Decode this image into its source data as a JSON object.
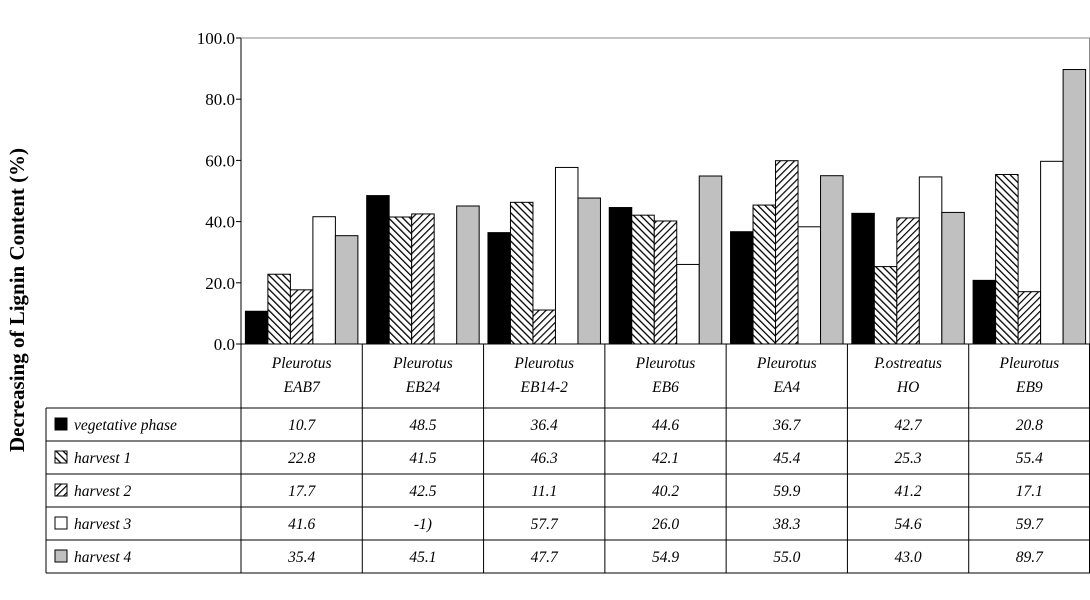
{
  "chart_data": {
    "type": "bar",
    "ylabel": "Decreasing of Lignin Content  (%)",
    "ylim": [
      0,
      100
    ],
    "yticks": [
      "0.0",
      "20.0",
      "40.0",
      "60.0",
      "80.0",
      "100.0"
    ],
    "categories": [
      [
        "Pleurotus",
        "EAB7"
      ],
      [
        "Pleurotus",
        "EB24"
      ],
      [
        "Pleurotus",
        "EB14-2"
      ],
      [
        "Pleurotus",
        "EB6"
      ],
      [
        "Pleurotus",
        "EA4"
      ],
      [
        "P.ostreatus",
        "HO"
      ],
      [
        "Pleurotus",
        "EB9"
      ]
    ],
    "series": [
      {
        "name": "vegetative phase",
        "pattern": "solid-black",
        "values": [
          10.7,
          48.5,
          36.4,
          44.6,
          36.7,
          42.7,
          20.8
        ],
        "labels": [
          "10.7",
          "48.5",
          "36.4",
          "44.6",
          "36.7",
          "42.7",
          "20.8"
        ]
      },
      {
        "name": "harvest 1",
        "pattern": "diag-hatch-dense",
        "values": [
          22.8,
          41.5,
          46.3,
          42.1,
          45.4,
          25.3,
          55.4
        ],
        "labels": [
          "22.8",
          "41.5",
          "46.3",
          "42.1",
          "45.4",
          "25.3",
          "55.4"
        ]
      },
      {
        "name": "harvest 2",
        "pattern": "diag-hatch-reverse",
        "values": [
          17.7,
          42.5,
          11.1,
          40.2,
          59.9,
          41.2,
          17.1
        ],
        "labels": [
          "17.7",
          "42.5",
          "11.1",
          "40.2",
          "59.9",
          "41.2",
          "17.1"
        ]
      },
      {
        "name": "harvest 3",
        "pattern": "white",
        "values": [
          41.6,
          null,
          57.7,
          26.0,
          38.3,
          54.6,
          59.7
        ],
        "labels": [
          "41.6",
          "-1)",
          "57.7",
          "26.0",
          "38.3",
          "54.6",
          "59.7"
        ]
      },
      {
        "name": "harvest  4",
        "pattern": "gray",
        "values": [
          35.4,
          45.1,
          47.7,
          54.9,
          55.0,
          43.0,
          89.7
        ],
        "labels": [
          "35.4",
          "45.1",
          "47.7",
          "54.9",
          "55.0",
          "43.0",
          "89.7"
        ]
      }
    ],
    "grid": false,
    "legend_placement": "data-table-left",
    "colors": {
      "bar_black": "#000000",
      "bar_gray": "#c0c0c0",
      "bar_white": "#ffffff",
      "outline": "#000000"
    }
  }
}
